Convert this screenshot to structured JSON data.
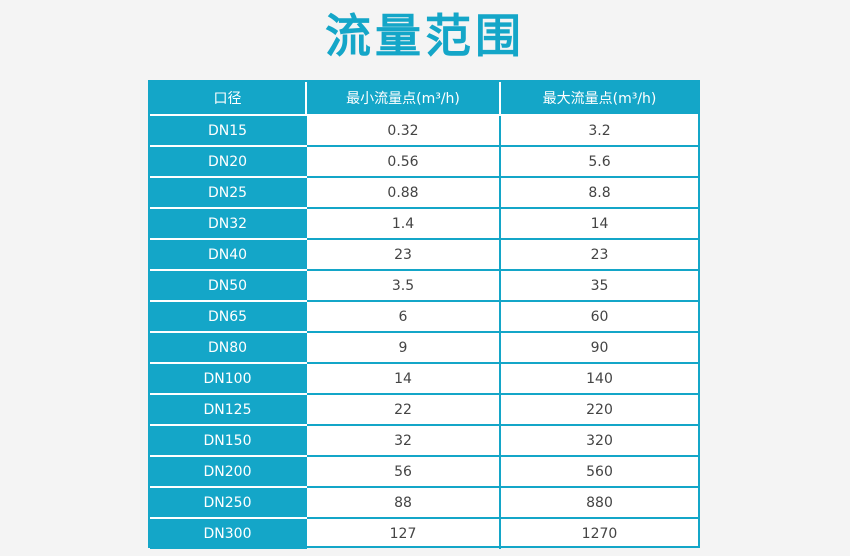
{
  "title": "流量范围",
  "table": {
    "headers": [
      "口径",
      "最小流量点(m³/h)",
      "最大流量点(m³/h)"
    ],
    "rows": [
      [
        "DN15",
        "0.32",
        "3.2"
      ],
      [
        "DN20",
        "0.56",
        "5.6"
      ],
      [
        "DN25",
        "0.88",
        "8.8"
      ],
      [
        "DN32",
        "1.4",
        "14"
      ],
      [
        "DN40",
        "23",
        "23"
      ],
      [
        "DN50",
        "3.5",
        "35"
      ],
      [
        "DN65",
        "6",
        "60"
      ],
      [
        "DN80",
        "9",
        "90"
      ],
      [
        "DN100",
        "14",
        "140"
      ],
      [
        "DN125",
        "22",
        "220"
      ],
      [
        "DN150",
        "32",
        "320"
      ],
      [
        "DN200",
        "56",
        "560"
      ],
      [
        "DN250",
        "88",
        "880"
      ],
      [
        "DN300",
        "127",
        "1270"
      ]
    ]
  },
  "colors": {
    "accent": "#14a6c8",
    "background": "#f4f4f4",
    "value_text": "#444444"
  }
}
